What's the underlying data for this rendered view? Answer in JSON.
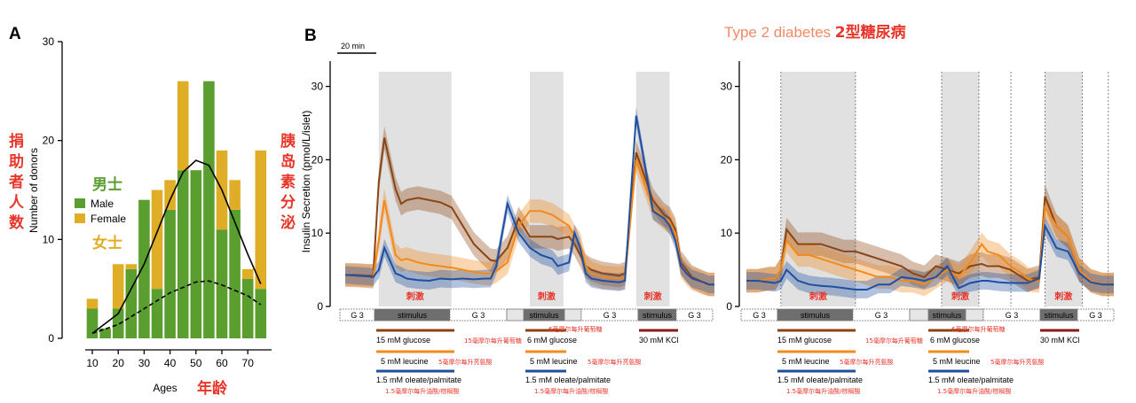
{
  "panel_a": {
    "label": "A",
    "ylabel": "Number of donors",
    "xlabel": "Ages",
    "xlabel_cn": "年龄",
    "left_cn": "捐助者人数",
    "right_cn": "胰岛素分泌",
    "legend_male": "Male",
    "legend_female": "Female",
    "male_cn": "男士",
    "female_cn": "女士",
    "colors": {
      "male": "#5a9e2f",
      "female": "#e0ad27"
    }
  },
  "panel_b": {
    "label": "B",
    "scale_bar": "20 min",
    "title_en": "Type 2 diabetes ",
    "title_cn": "2型糖尿病",
    "ylabel": "Insulin Secretion (pmol/L/islet)",
    "stim_cn": "刺激",
    "left_band": [
      "G 3",
      "stimulus",
      "G 3",
      "G 6",
      "stimulus",
      "G 3",
      "stimulus",
      "G 3"
    ],
    "right_band": [
      "G 3",
      "stimulus",
      "G 3",
      "G 6",
      "stimulus",
      "G 3",
      "stimulus",
      "G 3"
    ],
    "glucose15": "15 mM glucose",
    "glucose15_cn": "15毫摩尔每升葡萄糖",
    "leucine": "5 mM leucine",
    "leucine_cn": "5毫摩尔每升亮氨酸",
    "oleate": "1.5 mM oleate/palmitate",
    "oleate_cn": "1.5毫摩尔每升油酸/棕榈酸",
    "glucose6": "6 mM glucose",
    "glucose6_cn": "6毫摩尔每升葡萄糖",
    "kcl": "30 mM KCl",
    "colors": {
      "glucose": "#8b4513",
      "leucine": "#f28a1c",
      "oleate": "#1f4fa0",
      "kcl": "#8b1a1a",
      "stim": "#e1e1e1",
      "cn_red": "#e8352a"
    }
  },
  "chart_data": [
    {
      "type": "bar",
      "stacked": true,
      "categories": [
        10,
        15,
        20,
        25,
        30,
        35,
        40,
        45,
        50,
        55,
        60,
        65,
        70,
        75
      ],
      "series": [
        {
          "name": "Male",
          "values": [
            3,
            1,
            3,
            7,
            14,
            5,
            13,
            17,
            17,
            26,
            11,
            13,
            6,
            5
          ]
        },
        {
          "name": "Female",
          "values": [
            1,
            0,
            4.5,
            0.5,
            0,
            10,
            3,
            9,
            0,
            0,
            8,
            3,
            1,
            14
          ]
        }
      ],
      "curves": [
        {
          "style": "solid",
          "x": [
            10,
            20,
            30,
            40,
            45,
            50,
            55,
            60,
            70,
            75
          ],
          "y": [
            0.5,
            2.5,
            7.5,
            14,
            16.8,
            18,
            17.5,
            15,
            8.5,
            5.5
          ]
        },
        {
          "style": "dashed",
          "x": [
            10,
            20,
            30,
            40,
            50,
            55,
            60,
            70,
            75
          ],
          "y": [
            0.5,
            1.4,
            3,
            4.6,
            5.7,
            5.8,
            5.4,
            4.3,
            3.4
          ]
        }
      ],
      "xticks": [
        10,
        20,
        30,
        40,
        50,
        60,
        70
      ],
      "yticks": [
        0,
        10,
        20,
        30
      ],
      "xlabel": "Ages",
      "ylabel": "Number of donors",
      "ylim": [
        0,
        30
      ],
      "legend": "left"
    },
    {
      "type": "line",
      "panel": "left",
      "x": [
        0,
        4,
        8,
        10,
        12,
        14,
        18,
        20,
        22,
        26,
        30,
        34,
        38,
        42,
        46,
        50,
        52,
        54,
        58,
        62,
        66,
        70,
        74,
        76,
        80,
        82,
        84,
        86,
        88,
        92,
        98,
        100,
        104,
        110,
        114,
        116,
        118,
        120,
        122,
        124,
        128,
        130,
        132
      ],
      "series": [
        {
          "name": "15 mM glucose",
          "values": [
            4.3,
            4.3,
            4.2,
            4.2,
            17,
            23,
            16,
            14,
            14.5,
            14.8,
            14.5,
            14.2,
            13.5,
            11,
            8.5,
            7,
            6.3,
            6.2,
            8,
            12,
            9.5,
            9.5,
            9.5,
            9.2,
            9.5,
            8.5,
            7,
            5.5,
            5,
            4.5,
            4.2,
            4.5,
            21,
            14.5,
            12.5,
            12,
            10.5,
            6,
            5,
            4,
            3.3,
            3,
            3
          ]
        },
        {
          "name": "5 mM leucine",
          "values": [
            4.3,
            4.2,
            4.1,
            4,
            9,
            14.5,
            7,
            6.3,
            6.5,
            6,
            5.7,
            5.5,
            5.3,
            5,
            4.7,
            4.5,
            4.5,
            4.8,
            6,
            11,
            13,
            13,
            12.5,
            12,
            11,
            9.5,
            8.5,
            5.5,
            4.5,
            4,
            3.8,
            4,
            20,
            13.5,
            12,
            11.5,
            10,
            5.5,
            4.5,
            3.8,
            3.2,
            3,
            3
          ]
        },
        {
          "name": "1.5 mM oleate/palmitate",
          "values": [
            4.3,
            4.2,
            4.1,
            4,
            5,
            8,
            4.5,
            4.2,
            3.8,
            3.6,
            3.5,
            3.8,
            3.7,
            3.8,
            3.7,
            3.8,
            3.8,
            5.5,
            14,
            10,
            8,
            7,
            6.5,
            5.5,
            6,
            10,
            8,
            4.5,
            3.8,
            3.5,
            3.3,
            3.5,
            26,
            13,
            12,
            11,
            9,
            5.5,
            4.5,
            3.8,
            3.3,
            3,
            3
          ]
        }
      ],
      "xlim": [
        0,
        132
      ],
      "ylim": [
        0,
        32
      ],
      "yticks": [
        0,
        10,
        20,
        30
      ],
      "ylabel": "Insulin Secretion (pmol/L/islet)",
      "shaded": [
        [
          12,
          38
        ],
        [
          66,
          78
        ],
        [
          104,
          116
        ]
      ]
    },
    {
      "type": "line",
      "panel": "right",
      "title": "Type 2 diabetes 2型糖尿病",
      "x": [
        0,
        4,
        8,
        10,
        12,
        14,
        18,
        22,
        26,
        30,
        34,
        38,
        42,
        46,
        50,
        54,
        58,
        62,
        66,
        70,
        74,
        78,
        82,
        84,
        88,
        92,
        96,
        98,
        100,
        102,
        104,
        108,
        112,
        116,
        120,
        124,
        128
      ],
      "series": [
        {
          "name": "15 mM glucose",
          "values": [
            3.5,
            3.5,
            3.8,
            3.8,
            5,
            10.5,
            8.5,
            8.5,
            8.5,
            8,
            7.5,
            7.5,
            7,
            6.5,
            6,
            5.5,
            4.5,
            4,
            5.5,
            5,
            4.5,
            5.5,
            5.8,
            5.5,
            5.5,
            5,
            4,
            3.5,
            3.8,
            4,
            15,
            11,
            9.5,
            5,
            3.5,
            3,
            3
          ]
        },
        {
          "name": "5 mM leucine",
          "values": [
            3.5,
            3.5,
            3.8,
            3.8,
            5,
            9,
            7,
            7,
            6.5,
            6,
            5.5,
            5,
            4.5,
            4,
            4,
            3.5,
            3.5,
            3,
            4,
            5,
            4,
            6,
            8.5,
            7.5,
            7,
            5.5,
            4.5,
            3.8,
            3.5,
            3.5,
            13.5,
            11,
            9.5,
            5,
            3.5,
            3,
            3
          ]
        },
        {
          "name": "1.5 mM oleate/palmitate",
          "values": [
            3.5,
            3.5,
            3.3,
            3.2,
            3.5,
            5,
            3.5,
            3,
            2.8,
            2.7,
            2.5,
            2.3,
            2.3,
            3,
            3,
            4,
            3.8,
            3.5,
            4,
            5.5,
            2.5,
            3.2,
            3.5,
            3.5,
            3.3,
            3.2,
            3.2,
            3.2,
            3.5,
            3.8,
            11,
            8,
            7.5,
            4.5,
            3.3,
            3,
            3
          ]
        }
      ],
      "xlim": [
        0,
        128
      ],
      "ylim": [
        0,
        32
      ],
      "yticks": [
        0,
        10,
        20,
        30
      ],
      "shaded": [
        [
          12,
          38
        ],
        [
          68,
          81
        ],
        [
          104,
          117
        ]
      ]
    }
  ]
}
